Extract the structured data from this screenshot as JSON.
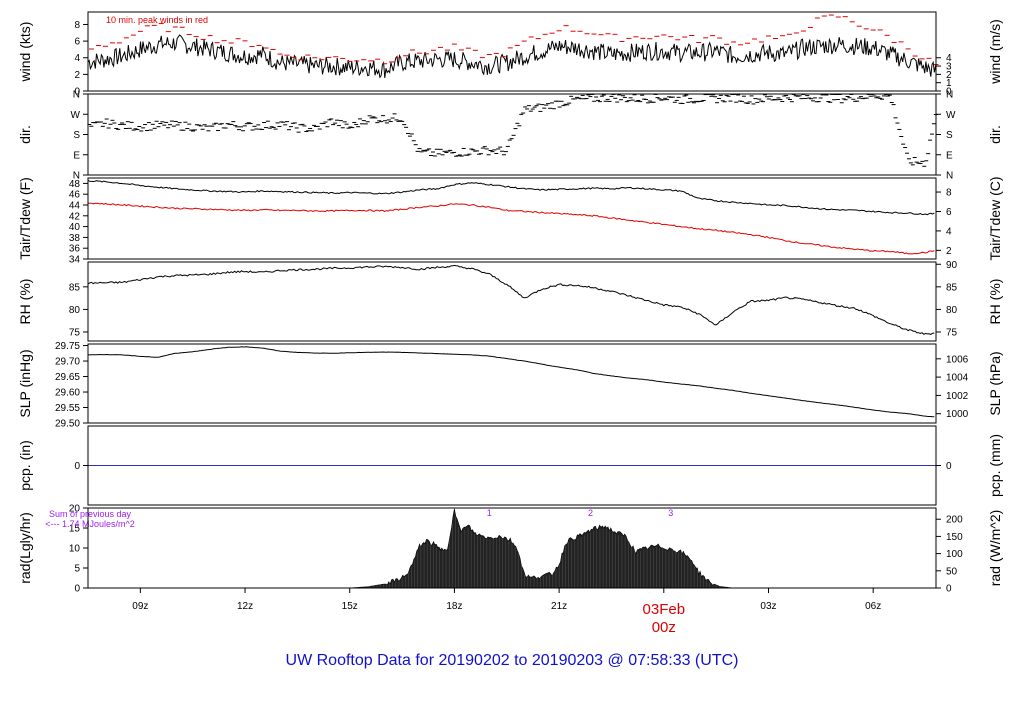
{
  "title": "UW Rooftop Data for 20190202  to  20190203 @ 07:58:33  (UTC)",
  "colors": {
    "title": "#1010d0",
    "date_marker": "#e00000",
    "peak": "#e00000",
    "dew": "#e00000",
    "pcp": "#3030c0",
    "rad_note": "#a020f0",
    "line": "#000000"
  },
  "time_axis": {
    "range_hours_from_0z_feb2": [
      7.5,
      31.8
    ],
    "ticks": [
      {
        "h": 9,
        "label": "09z"
      },
      {
        "h": 12,
        "label": "12z"
      },
      {
        "h": 15,
        "label": "15z"
      },
      {
        "h": 18,
        "label": "18z"
      },
      {
        "h": 21,
        "label": "21z"
      },
      {
        "h": 27,
        "label": "03z"
      },
      {
        "h": 30,
        "label": "06z"
      }
    ],
    "date_marker": {
      "h": 24,
      "date": "03Feb",
      "hour": "00z"
    }
  },
  "chart_data": [
    {
      "type": "line",
      "id": "wind",
      "ylabel_left": "wind (kts)",
      "ylabel_right": "wind (m/s)",
      "ylim": [
        0,
        9.5
      ],
      "left_ticks": [
        "0",
        "2",
        "4",
        "6",
        "8"
      ],
      "left_tick_values": [
        0,
        2,
        4,
        6,
        8
      ],
      "right_ticks": [
        "0",
        "1",
        "2",
        "3",
        "4"
      ],
      "right_tick_values": [
        0,
        1,
        2,
        3,
        4
      ],
      "annotation": "10 min. peak winds in red",
      "x": [
        7.5,
        8,
        8.5,
        9,
        9.5,
        10,
        10.5,
        11,
        11.5,
        12,
        12.5,
        13,
        13.5,
        14,
        14.5,
        15,
        15.5,
        16,
        16.5,
        17,
        17.5,
        18,
        18.5,
        19,
        19.5,
        20,
        20.5,
        21,
        21.5,
        22,
        22.5,
        23,
        23.5,
        24,
        24.5,
        25,
        25.5,
        26,
        26.5,
        27,
        27.5,
        28,
        28.5,
        29,
        29.5,
        30,
        30.5,
        31,
        31.5,
        31.8
      ],
      "series": [
        {
          "values": [
            3.5,
            3.8,
            4.2,
            5.0,
            5.6,
            5.8,
            5.4,
            5.0,
            4.6,
            4.2,
            4.4,
            3.4,
            3.2,
            3.0,
            3.0,
            2.8,
            2.9,
            2.6,
            3.4,
            3.6,
            3.8,
            3.8,
            3.4,
            3.0,
            3.4,
            4.2,
            4.8,
            5.4,
            5.2,
            4.8,
            4.4,
            4.6,
            4.8,
            4.8,
            4.6,
            4.6,
            4.8,
            4.2,
            4.4,
            4.6,
            4.4,
            5.2,
            5.4,
            5.6,
            5.4,
            5.2,
            4.4,
            3.6,
            2.8,
            2.4
          ]
        },
        {
          "name": "10 min. peak winds",
          "values": [
            5.0,
            5.6,
            6.2,
            7.2,
            7.8,
            7.4,
            7.0,
            6.4,
            6.0,
            5.8,
            5.6,
            4.4,
            4.2,
            4.0,
            4.0,
            3.8,
            3.9,
            3.6,
            4.4,
            4.6,
            5.0,
            5.2,
            4.6,
            4.2,
            4.6,
            5.8,
            6.6,
            7.6,
            7.4,
            7.0,
            6.4,
            6.4,
            6.6,
            6.6,
            6.4,
            6.2,
            6.4,
            5.8,
            6.0,
            6.4,
            6.2,
            7.6,
            8.6,
            9.0,
            8.2,
            7.4,
            6.4,
            5.2,
            3.8,
            3.2
          ]
        }
      ]
    },
    {
      "type": "scatter",
      "id": "dir",
      "ylabel_left": "dir.",
      "ylabel_right": "dir.",
      "ylim": [
        0,
        360
      ],
      "left_ticks": [
        "N",
        "E",
        "S",
        "W",
        "N"
      ],
      "left_tick_values": [
        0,
        90,
        180,
        270,
        360
      ],
      "right_ticks": [
        "N",
        "E",
        "S",
        "W",
        "N"
      ],
      "right_tick_values": [
        0,
        90,
        180,
        270,
        360
      ],
      "x": [
        7.5,
        8,
        8.5,
        9,
        9.5,
        10,
        10.5,
        11,
        11.5,
        12,
        12.5,
        13,
        13.5,
        14,
        14.5,
        15,
        15.5,
        16,
        16.5,
        17,
        17.5,
        18,
        18.5,
        19,
        19.5,
        20,
        20.5,
        21,
        21.5,
        22,
        22.5,
        23,
        23.5,
        24,
        24.5,
        25,
        25.5,
        26,
        26.5,
        27,
        27.5,
        28,
        28.5,
        29,
        29.5,
        30,
        30.5,
        31,
        31.5,
        31.8
      ],
      "series": [
        {
          "values": [
            210,
            230,
            220,
            215,
            220,
            220,
            215,
            205,
            225,
            215,
            220,
            225,
            210,
            205,
            240,
            210,
            250,
            250,
            255,
            100,
            95,
            100,
            105,
            110,
            105,
            290,
            300,
            320,
            335,
            340,
            345,
            340,
            340,
            345,
            335,
            340,
            340,
            345,
            335,
            340,
            345,
            345,
            345,
            340,
            345,
            355,
            350,
            60,
            55,
            270
          ]
        }
      ]
    },
    {
      "type": "line",
      "id": "temp",
      "ylabel_left": "Tair/Tdew (F)",
      "ylabel_right": "Tair/Tdew (C)",
      "ylim": [
        34,
        49
      ],
      "left_ticks": [
        "34",
        "36",
        "38",
        "40",
        "42",
        "44",
        "46",
        "48"
      ],
      "left_tick_values": [
        34,
        36,
        38,
        40,
        42,
        44,
        46,
        48
      ],
      "right_ticks": [
        "2",
        "4",
        "6",
        "8"
      ],
      "right_tick_values": [
        35.6,
        39.2,
        42.8,
        46.4
      ],
      "x": [
        7.5,
        8,
        8.5,
        9,
        9.5,
        10,
        10.5,
        11,
        11.5,
        12,
        12.5,
        13,
        13.5,
        14,
        14.5,
        15,
        15.5,
        16,
        16.5,
        17,
        17.5,
        18,
        18.5,
        19,
        19.5,
        20,
        20.5,
        21,
        21.5,
        22,
        22.5,
        23,
        23.5,
        24,
        24.5,
        25,
        25.5,
        26,
        26.5,
        27,
        27.5,
        28,
        28.5,
        29,
        29.5,
        30,
        30.5,
        31,
        31.5,
        31.8
      ],
      "series": [
        {
          "name": "Tair",
          "values": [
            48.5,
            48.3,
            48.0,
            47.6,
            47.3,
            47.0,
            46.8,
            46.6,
            46.5,
            46.4,
            46.6,
            46.5,
            46.4,
            46.3,
            46.2,
            46.3,
            46.2,
            46.1,
            46.4,
            46.8,
            47.0,
            47.8,
            48.1,
            47.8,
            47.4,
            47.0,
            46.8,
            46.9,
            47.0,
            47.1,
            47.0,
            47.2,
            47.0,
            46.8,
            46.6,
            45.2,
            44.8,
            44.5,
            44.3,
            44.0,
            43.9,
            43.6,
            43.3,
            43.1,
            43.0,
            42.8,
            42.6,
            42.5,
            42.3,
            42.4
          ]
        },
        {
          "name": "Tdew",
          "values": [
            44.4,
            44.2,
            44.0,
            43.8,
            43.6,
            43.4,
            43.3,
            43.2,
            43.1,
            43.0,
            43.1,
            43.0,
            43.0,
            42.9,
            42.9,
            43.0,
            43.0,
            42.9,
            43.2,
            43.6,
            43.8,
            44.2,
            44.0,
            43.6,
            43.0,
            42.8,
            42.6,
            42.4,
            42.2,
            42.0,
            41.6,
            41.2,
            40.8,
            40.4,
            40.0,
            39.6,
            39.3,
            38.9,
            38.5,
            38.0,
            37.4,
            36.9,
            36.5,
            36.1,
            35.8,
            35.5,
            35.4,
            35.0,
            35.2,
            35.6
          ]
        }
      ]
    },
    {
      "type": "line",
      "id": "rh",
      "ylabel_left": "RH (%)",
      "ylabel_right": "RH (%)",
      "ylim": [
        73,
        90.5
      ],
      "left_ticks": [
        "75",
        "80",
        "85"
      ],
      "left_tick_values": [
        75,
        80,
        85
      ],
      "right_ticks": [
        "75",
        "80",
        "85",
        "90"
      ],
      "right_tick_values": [
        75,
        80,
        85,
        90
      ],
      "x": [
        7.5,
        8,
        8.5,
        9,
        9.5,
        10,
        10.5,
        11,
        11.5,
        12,
        12.5,
        13,
        13.5,
        14,
        14.5,
        15,
        15.5,
        16,
        16.5,
        17,
        17.5,
        18,
        18.5,
        19,
        19.5,
        20,
        20.5,
        21,
        21.5,
        22,
        22.5,
        23,
        23.5,
        24,
        24.5,
        25,
        25.5,
        26,
        26.5,
        27,
        27.5,
        28,
        28.5,
        29,
        29.5,
        30,
        30.5,
        31,
        31.5,
        31.8
      ],
      "series": [
        {
          "values": [
            85.8,
            85.9,
            86.0,
            86.6,
            87.2,
            87.5,
            87.6,
            87.8,
            88.2,
            88.4,
            88.2,
            88.6,
            88.8,
            88.9,
            89.1,
            89.2,
            89.4,
            89.5,
            89.3,
            88.9,
            89.3,
            89.6,
            89.0,
            87.8,
            85.5,
            82.5,
            84.5,
            85.5,
            85.3,
            84.8,
            84.0,
            83.0,
            82.0,
            81.0,
            80.5,
            79.0,
            76.5,
            79.5,
            81.8,
            82.0,
            82.6,
            82.2,
            81.5,
            80.8,
            80.2,
            78.6,
            76.8,
            75.4,
            74.5,
            74.8
          ]
        }
      ]
    },
    {
      "type": "line",
      "id": "slp",
      "ylabel_left": "SLP (inHg)",
      "ylabel_right": "SLP (hPa)",
      "ylim": [
        29.5,
        29.755
      ],
      "left_ticks": [
        "29.50",
        "29.55",
        "29.60",
        "29.65",
        "29.70",
        "29.75"
      ],
      "left_tick_values": [
        29.5,
        29.55,
        29.6,
        29.65,
        29.7,
        29.75
      ],
      "right_ticks": [
        "1000",
        "1002",
        "1004",
        "1006"
      ],
      "right_tick_values": [
        29.53,
        29.5891,
        29.6482,
        29.7072
      ],
      "x": [
        7.5,
        8,
        8.5,
        9,
        9.5,
        10,
        10.5,
        11,
        11.5,
        12,
        12.5,
        13,
        13.5,
        14,
        14.5,
        15,
        15.5,
        16,
        16.5,
        17,
        17.5,
        18,
        18.5,
        19,
        19.5,
        20,
        20.5,
        21,
        21.5,
        22,
        22.5,
        23,
        23.5,
        24,
        24.5,
        25,
        25.5,
        26,
        26.5,
        27,
        27.5,
        28,
        28.5,
        29,
        29.5,
        30,
        30.5,
        31,
        31.5,
        31.8
      ],
      "series": [
        {
          "values": [
            29.72,
            29.721,
            29.72,
            29.715,
            29.712,
            29.725,
            29.73,
            29.738,
            29.744,
            29.746,
            29.742,
            29.732,
            29.728,
            29.726,
            29.725,
            29.727,
            29.728,
            29.729,
            29.728,
            29.726,
            29.724,
            29.722,
            29.72,
            29.716,
            29.708,
            29.7,
            29.69,
            29.68,
            29.672,
            29.66,
            29.652,
            29.645,
            29.64,
            29.632,
            29.626,
            29.62,
            29.612,
            29.605,
            29.596,
            29.588,
            29.58,
            29.572,
            29.565,
            29.558,
            29.55,
            29.542,
            29.535,
            29.53,
            29.522,
            29.52
          ]
        }
      ]
    },
    {
      "type": "line",
      "id": "pcp",
      "ylabel_left": "pcp. (in)",
      "ylabel_right": "pcp. (mm)",
      "ylim": [
        -1,
        1
      ],
      "left_ticks": [
        "0"
      ],
      "left_tick_values": [
        0
      ],
      "right_ticks": [
        "0"
      ],
      "right_tick_values": [
        0
      ],
      "x": [
        7.5,
        31.8
      ],
      "series": [
        {
          "values": [
            0,
            0
          ]
        }
      ]
    },
    {
      "type": "area",
      "id": "rad",
      "ylabel_left": "rad(Lgly/hr)",
      "ylabel_right": "rad (W/m^2)",
      "ylim": [
        0,
        20
      ],
      "left_ticks": [
        "0",
        "5",
        "10",
        "15",
        "20"
      ],
      "left_tick_values": [
        0,
        5,
        10,
        15,
        20
      ],
      "right_ticks": [
        "0",
        "50",
        "100",
        "150",
        "200"
      ],
      "right_tick_values": [
        0,
        4.3,
        8.6,
        12.9,
        17.2
      ],
      "annotation_lines": [
        "Sum of previous day",
        "<--- 1.74 MJoules/m^2"
      ],
      "peak_labels": [
        {
          "h": 19.0,
          "label": "1"
        },
        {
          "h": 21.9,
          "label": "2"
        },
        {
          "h": 24.2,
          "label": "3"
        }
      ],
      "x": [
        15.0,
        15.5,
        16.0,
        16.3,
        16.6,
        16.8,
        17.0,
        17.2,
        17.4,
        17.6,
        17.8,
        18.0,
        18.1,
        18.2,
        18.4,
        18.6,
        18.8,
        19.0,
        19.3,
        19.6,
        19.8,
        20.0,
        20.2,
        20.5,
        20.8,
        21.0,
        21.2,
        21.4,
        21.6,
        21.8,
        22.0,
        22.3,
        22.6,
        22.9,
        23.2,
        23.5,
        23.8,
        24.1,
        24.3,
        24.5,
        24.8,
        25.0,
        25.3,
        25.6,
        26.0
      ],
      "series": [
        {
          "values": [
            0,
            0.3,
            1.0,
            1.8,
            3.0,
            6.0,
            10.5,
            11.8,
            11.0,
            9.5,
            10.0,
            19.5,
            16.0,
            14.5,
            15.5,
            13.5,
            13.0,
            12.5,
            13.0,
            12.0,
            10.0,
            3.5,
            2.5,
            3.0,
            3.5,
            6.0,
            11.5,
            12.5,
            13.0,
            14.0,
            14.8,
            15.5,
            14.0,
            13.0,
            9.0,
            10.0,
            10.5,
            10.0,
            9.5,
            9.0,
            7.0,
            4.0,
            1.5,
            0.4,
            0
          ]
        }
      ]
    }
  ]
}
